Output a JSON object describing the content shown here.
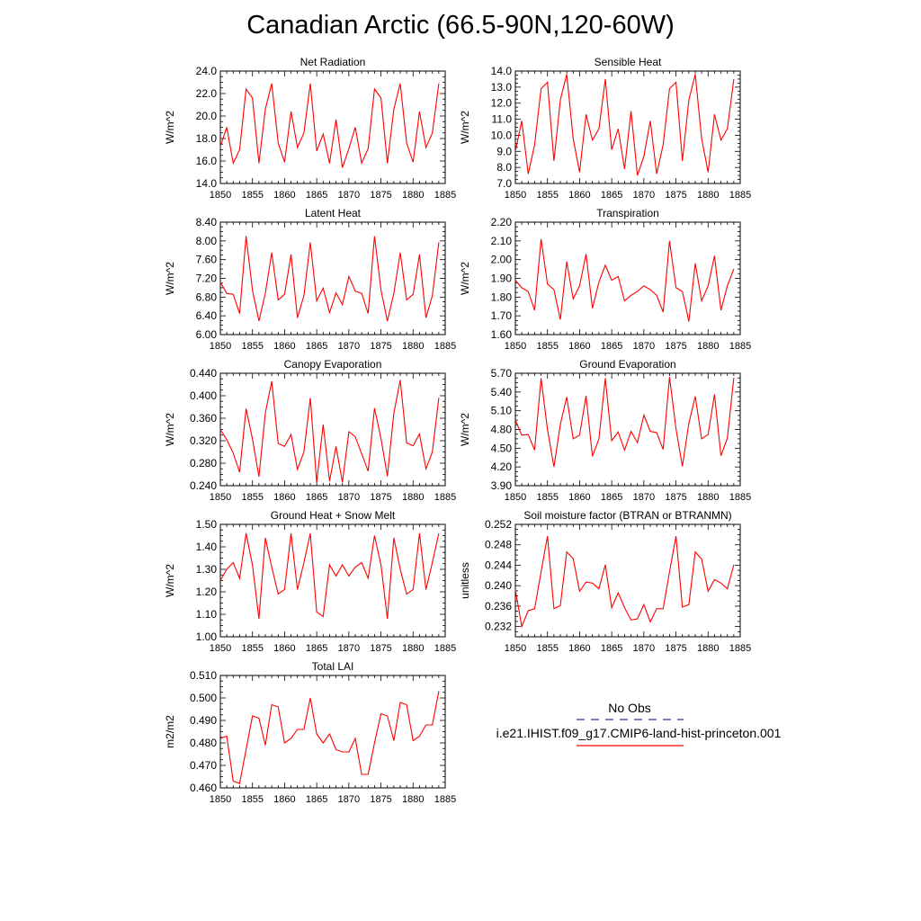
{
  "title": "Canadian Arctic (66.5-90N,120-60W)",
  "legend": {
    "obs_label": "No Obs",
    "obs_color": "#3333aa",
    "model_label": "i.e21.IHIST.f09_g17.CMIP6-land-hist-princeton.001",
    "model_color": "#ff0000"
  },
  "chart_data": [
    {
      "type": "line",
      "title": "Net Radiation",
      "ylabel": "W/m^2",
      "xlim": [
        1850,
        1885
      ],
      "ylim": [
        14.0,
        24.0
      ],
      "xticks": [
        "1850",
        "1855",
        "1860",
        "1865",
        "1870",
        "1875",
        "1880",
        "1885"
      ],
      "yticks": [
        "14.0",
        "16.0",
        "18.0",
        "20.0",
        "22.0",
        "24.0"
      ],
      "x": [
        1850,
        1851,
        1852,
        1853,
        1854,
        1855,
        1856,
        1857,
        1858,
        1859,
        1860,
        1861,
        1862,
        1863,
        1864,
        1865,
        1866,
        1867,
        1868,
        1869,
        1870,
        1871,
        1872,
        1873,
        1874,
        1875,
        1876,
        1877,
        1878,
        1879,
        1880,
        1881,
        1882,
        1883,
        1884
      ],
      "series": [
        {
          "values": [
            17.3,
            19.0,
            15.8,
            17.0,
            22.4,
            21.6,
            15.8,
            20.6,
            22.9,
            17.6,
            15.9,
            20.4,
            17.2,
            18.5,
            22.9,
            16.9,
            18.4,
            15.8,
            19.7,
            15.4,
            17.1,
            19.0,
            15.8,
            17.1,
            22.4,
            21.6,
            15.8,
            20.6,
            22.9,
            17.6,
            15.9,
            20.4,
            17.2,
            18.5,
            22.9
          ]
        }
      ]
    },
    {
      "type": "line",
      "title": "Sensible Heat",
      "ylabel": "W/m^2",
      "xlim": [
        1850,
        1885
      ],
      "ylim": [
        7.0,
        14.0
      ],
      "xticks": [
        "1850",
        "1855",
        "1860",
        "1865",
        "1870",
        "1875",
        "1880",
        "1885"
      ],
      "yticks": [
        "7.0",
        "8.0",
        "9.0",
        "10.0",
        "11.0",
        "12.0",
        "13.0",
        "14.0"
      ],
      "x": [
        1850,
        1851,
        1852,
        1853,
        1854,
        1855,
        1856,
        1857,
        1858,
        1859,
        1860,
        1861,
        1862,
        1863,
        1864,
        1865,
        1866,
        1867,
        1868,
        1869,
        1870,
        1871,
        1872,
        1873,
        1874,
        1875,
        1876,
        1877,
        1878,
        1879,
        1880,
        1881,
        1882,
        1883,
        1884
      ],
      "series": [
        {
          "values": [
            9.0,
            10.9,
            7.6,
            9.4,
            12.9,
            13.3,
            8.4,
            12.2,
            13.8,
            9.8,
            7.7,
            11.3,
            9.7,
            10.4,
            13.5,
            9.1,
            10.4,
            7.9,
            11.5,
            7.5,
            8.7,
            10.9,
            7.6,
            9.4,
            12.9,
            13.3,
            8.4,
            12.2,
            13.8,
            9.8,
            7.7,
            11.3,
            9.7,
            10.4,
            13.5
          ]
        }
      ]
    },
    {
      "type": "line",
      "title": "Latent Heat",
      "ylabel": "W/m^2",
      "xlim": [
        1850,
        1885
      ],
      "ylim": [
        6.0,
        8.4
      ],
      "xticks": [
        "1850",
        "1855",
        "1860",
        "1865",
        "1870",
        "1875",
        "1880",
        "1885"
      ],
      "yticks": [
        "6.00",
        "6.40",
        "6.80",
        "7.20",
        "7.60",
        "8.00",
        "8.40"
      ],
      "x": [
        1850,
        1851,
        1852,
        1853,
        1854,
        1855,
        1856,
        1857,
        1858,
        1859,
        1860,
        1861,
        1862,
        1863,
        1864,
        1865,
        1866,
        1867,
        1868,
        1869,
        1870,
        1871,
        1872,
        1873,
        1874,
        1875,
        1876,
        1877,
        1878,
        1879,
        1880,
        1881,
        1882,
        1883,
        1884
      ],
      "series": [
        {
          "values": [
            7.12,
            6.88,
            6.86,
            6.45,
            8.1,
            6.95,
            6.29,
            6.88,
            7.75,
            6.74,
            6.86,
            7.71,
            6.36,
            6.83,
            7.97,
            6.72,
            6.99,
            6.47,
            6.89,
            6.64,
            7.24,
            6.93,
            6.88,
            6.45,
            8.1,
            6.95,
            6.29,
            6.88,
            7.75,
            6.74,
            6.86,
            7.71,
            6.36,
            6.83,
            7.97
          ]
        }
      ]
    },
    {
      "type": "line",
      "title": "Transpiration",
      "ylabel": "W/m^2",
      "xlim": [
        1850,
        1885
      ],
      "ylim": [
        1.6,
        2.2
      ],
      "xticks": [
        "1850",
        "1855",
        "1860",
        "1865",
        "1870",
        "1875",
        "1880",
        "1885"
      ],
      "yticks": [
        "1.60",
        "1.70",
        "1.80",
        "1.90",
        "2.00",
        "2.10",
        "2.20"
      ],
      "x": [
        1850,
        1851,
        1852,
        1853,
        1854,
        1855,
        1856,
        1857,
        1858,
        1859,
        1860,
        1861,
        1862,
        1863,
        1864,
        1865,
        1866,
        1867,
        1868,
        1869,
        1870,
        1871,
        1872,
        1873,
        1874,
        1875,
        1876,
        1877,
        1878,
        1879,
        1880,
        1881,
        1882,
        1883,
        1884
      ],
      "series": [
        {
          "values": [
            1.89,
            1.85,
            1.83,
            1.73,
            2.11,
            1.87,
            1.84,
            1.68,
            1.99,
            1.79,
            1.86,
            2.03,
            1.74,
            1.88,
            1.97,
            1.89,
            1.91,
            1.78,
            1.81,
            1.83,
            1.86,
            1.84,
            1.81,
            1.72,
            2.1,
            1.85,
            1.83,
            1.67,
            1.98,
            1.78,
            1.86,
            2.02,
            1.73,
            1.86,
            1.95
          ]
        }
      ]
    },
    {
      "type": "line",
      "title": "Canopy Evaporation",
      "ylabel": "W/m^2",
      "xlim": [
        1850,
        1885
      ],
      "ylim": [
        0.24,
        0.44
      ],
      "xticks": [
        "1850",
        "1855",
        "1860",
        "1865",
        "1870",
        "1875",
        "1880",
        "1885"
      ],
      "yticks": [
        "0.240",
        "0.280",
        "0.320",
        "0.360",
        "0.400",
        "0.440"
      ],
      "x": [
        1850,
        1851,
        1852,
        1853,
        1854,
        1855,
        1856,
        1857,
        1858,
        1859,
        1860,
        1861,
        1862,
        1863,
        1864,
        1865,
        1866,
        1867,
        1868,
        1869,
        1870,
        1871,
        1872,
        1873,
        1874,
        1875,
        1876,
        1877,
        1878,
        1879,
        1880,
        1881,
        1882,
        1883,
        1884
      ],
      "series": [
        {
          "values": [
            0.34,
            0.322,
            0.298,
            0.264,
            0.377,
            0.323,
            0.256,
            0.369,
            0.426,
            0.315,
            0.31,
            0.331,
            0.269,
            0.3,
            0.396,
            0.246,
            0.349,
            0.248,
            0.31,
            0.246,
            0.336,
            0.327,
            0.297,
            0.266,
            0.378,
            0.324,
            0.257,
            0.369,
            0.428,
            0.316,
            0.311,
            0.332,
            0.27,
            0.3,
            0.396
          ]
        }
      ]
    },
    {
      "type": "line",
      "title": "Ground Evaporation",
      "ylabel": "W/m^2",
      "xlim": [
        1850,
        1885
      ],
      "ylim": [
        3.9,
        5.7
      ],
      "xticks": [
        "1850",
        "1855",
        "1860",
        "1865",
        "1870",
        "1875",
        "1880",
        "1885"
      ],
      "yticks": [
        "3.90",
        "4.20",
        "4.50",
        "4.80",
        "5.10",
        "5.40",
        "5.70"
      ],
      "x": [
        1850,
        1851,
        1852,
        1853,
        1854,
        1855,
        1856,
        1857,
        1858,
        1859,
        1860,
        1861,
        1862,
        1863,
        1864,
        1865,
        1866,
        1867,
        1868,
        1869,
        1870,
        1871,
        1872,
        1873,
        1874,
        1875,
        1876,
        1877,
        1878,
        1879,
        1880,
        1881,
        1882,
        1883,
        1884
      ],
      "series": [
        {
          "values": [
            4.95,
            4.71,
            4.72,
            4.47,
            5.62,
            4.8,
            4.2,
            4.88,
            5.32,
            4.65,
            4.71,
            5.34,
            4.37,
            4.65,
            5.62,
            4.62,
            4.76,
            4.47,
            4.77,
            4.59,
            5.03,
            4.77,
            4.75,
            4.48,
            5.64,
            4.81,
            4.21,
            4.9,
            5.33,
            4.65,
            4.72,
            5.36,
            4.38,
            4.66,
            5.63
          ]
        }
      ]
    },
    {
      "type": "line",
      "title": "Ground Heat + Snow Melt",
      "ylabel": "W/m^2",
      "xlim": [
        1850,
        1885
      ],
      "ylim": [
        1.0,
        1.5
      ],
      "xticks": [
        "1850",
        "1855",
        "1860",
        "1865",
        "1870",
        "1875",
        "1880",
        "1885"
      ],
      "yticks": [
        "1.00",
        "1.10",
        "1.20",
        "1.30",
        "1.40",
        "1.50"
      ],
      "x": [
        1850,
        1851,
        1852,
        1853,
        1854,
        1855,
        1856,
        1857,
        1858,
        1859,
        1860,
        1861,
        1862,
        1863,
        1864,
        1865,
        1866,
        1867,
        1868,
        1869,
        1870,
        1871,
        1872,
        1873,
        1874,
        1875,
        1876,
        1877,
        1878,
        1879,
        1880,
        1881,
        1882,
        1883,
        1884
      ],
      "series": [
        {
          "values": [
            1.25,
            1.3,
            1.33,
            1.26,
            1.46,
            1.32,
            1.08,
            1.44,
            1.31,
            1.19,
            1.21,
            1.46,
            1.21,
            1.33,
            1.46,
            1.11,
            1.09,
            1.32,
            1.27,
            1.32,
            1.27,
            1.31,
            1.33,
            1.26,
            1.45,
            1.32,
            1.08,
            1.44,
            1.3,
            1.19,
            1.21,
            1.46,
            1.21,
            1.33,
            1.46
          ]
        }
      ]
    },
    {
      "type": "line",
      "title": "Soil moisture factor (BTRAN or BTRANMN)",
      "ylabel": "unitless",
      "xlim": [
        1850,
        1885
      ],
      "ylim": [
        0.23,
        0.252
      ],
      "xticks": [
        "1850",
        "1855",
        "1860",
        "1865",
        "1870",
        "1875",
        "1880",
        "1885"
      ],
      "yticks": [
        "0.232",
        "0.236",
        "0.240",
        "0.244",
        "0.248",
        "0.252"
      ],
      "x": [
        1850,
        1851,
        1852,
        1853,
        1854,
        1855,
        1856,
        1857,
        1858,
        1859,
        1860,
        1861,
        1862,
        1863,
        1864,
        1865,
        1866,
        1867,
        1868,
        1869,
        1870,
        1871,
        1872,
        1873,
        1874,
        1875,
        1876,
        1877,
        1878,
        1879,
        1880,
        1881,
        1882,
        1883,
        1884
      ],
      "series": [
        {
          "values": [
            0.2392,
            0.232,
            0.2351,
            0.2355,
            0.2427,
            0.2497,
            0.2355,
            0.2361,
            0.2466,
            0.2453,
            0.2389,
            0.2407,
            0.2405,
            0.2394,
            0.2441,
            0.2357,
            0.2386,
            0.2357,
            0.2333,
            0.2335,
            0.2363,
            0.2329,
            0.2355,
            0.2355,
            0.2427,
            0.2497,
            0.2358,
            0.2363,
            0.2466,
            0.2452,
            0.2389,
            0.2412,
            0.2405,
            0.2394,
            0.2441
          ]
        }
      ]
    },
    {
      "type": "line",
      "title": "Total LAI",
      "ylabel": "m2/m2",
      "xlim": [
        1850,
        1885
      ],
      "ylim": [
        0.46,
        0.51
      ],
      "xticks": [
        "1850",
        "1855",
        "1860",
        "1865",
        "1870",
        "1875",
        "1880",
        "1885"
      ],
      "yticks": [
        "0.460",
        "0.470",
        "0.480",
        "0.490",
        "0.500",
        "0.510"
      ],
      "x": [
        1850,
        1851,
        1852,
        1853,
        1854,
        1855,
        1856,
        1857,
        1858,
        1859,
        1860,
        1861,
        1862,
        1863,
        1864,
        1865,
        1866,
        1867,
        1868,
        1869,
        1870,
        1871,
        1872,
        1873,
        1874,
        1875,
        1876,
        1877,
        1878,
        1879,
        1880,
        1881,
        1882,
        1883,
        1884
      ],
      "series": [
        {
          "values": [
            0.482,
            0.483,
            0.463,
            0.462,
            0.477,
            0.492,
            0.491,
            0.479,
            0.497,
            0.496,
            0.48,
            0.482,
            0.486,
            0.486,
            0.5,
            0.484,
            0.48,
            0.484,
            0.477,
            0.476,
            0.476,
            0.482,
            0.466,
            0.466,
            0.48,
            0.493,
            0.492,
            0.481,
            0.498,
            0.497,
            0.481,
            0.483,
            0.488,
            0.488,
            0.503
          ]
        }
      ]
    }
  ]
}
